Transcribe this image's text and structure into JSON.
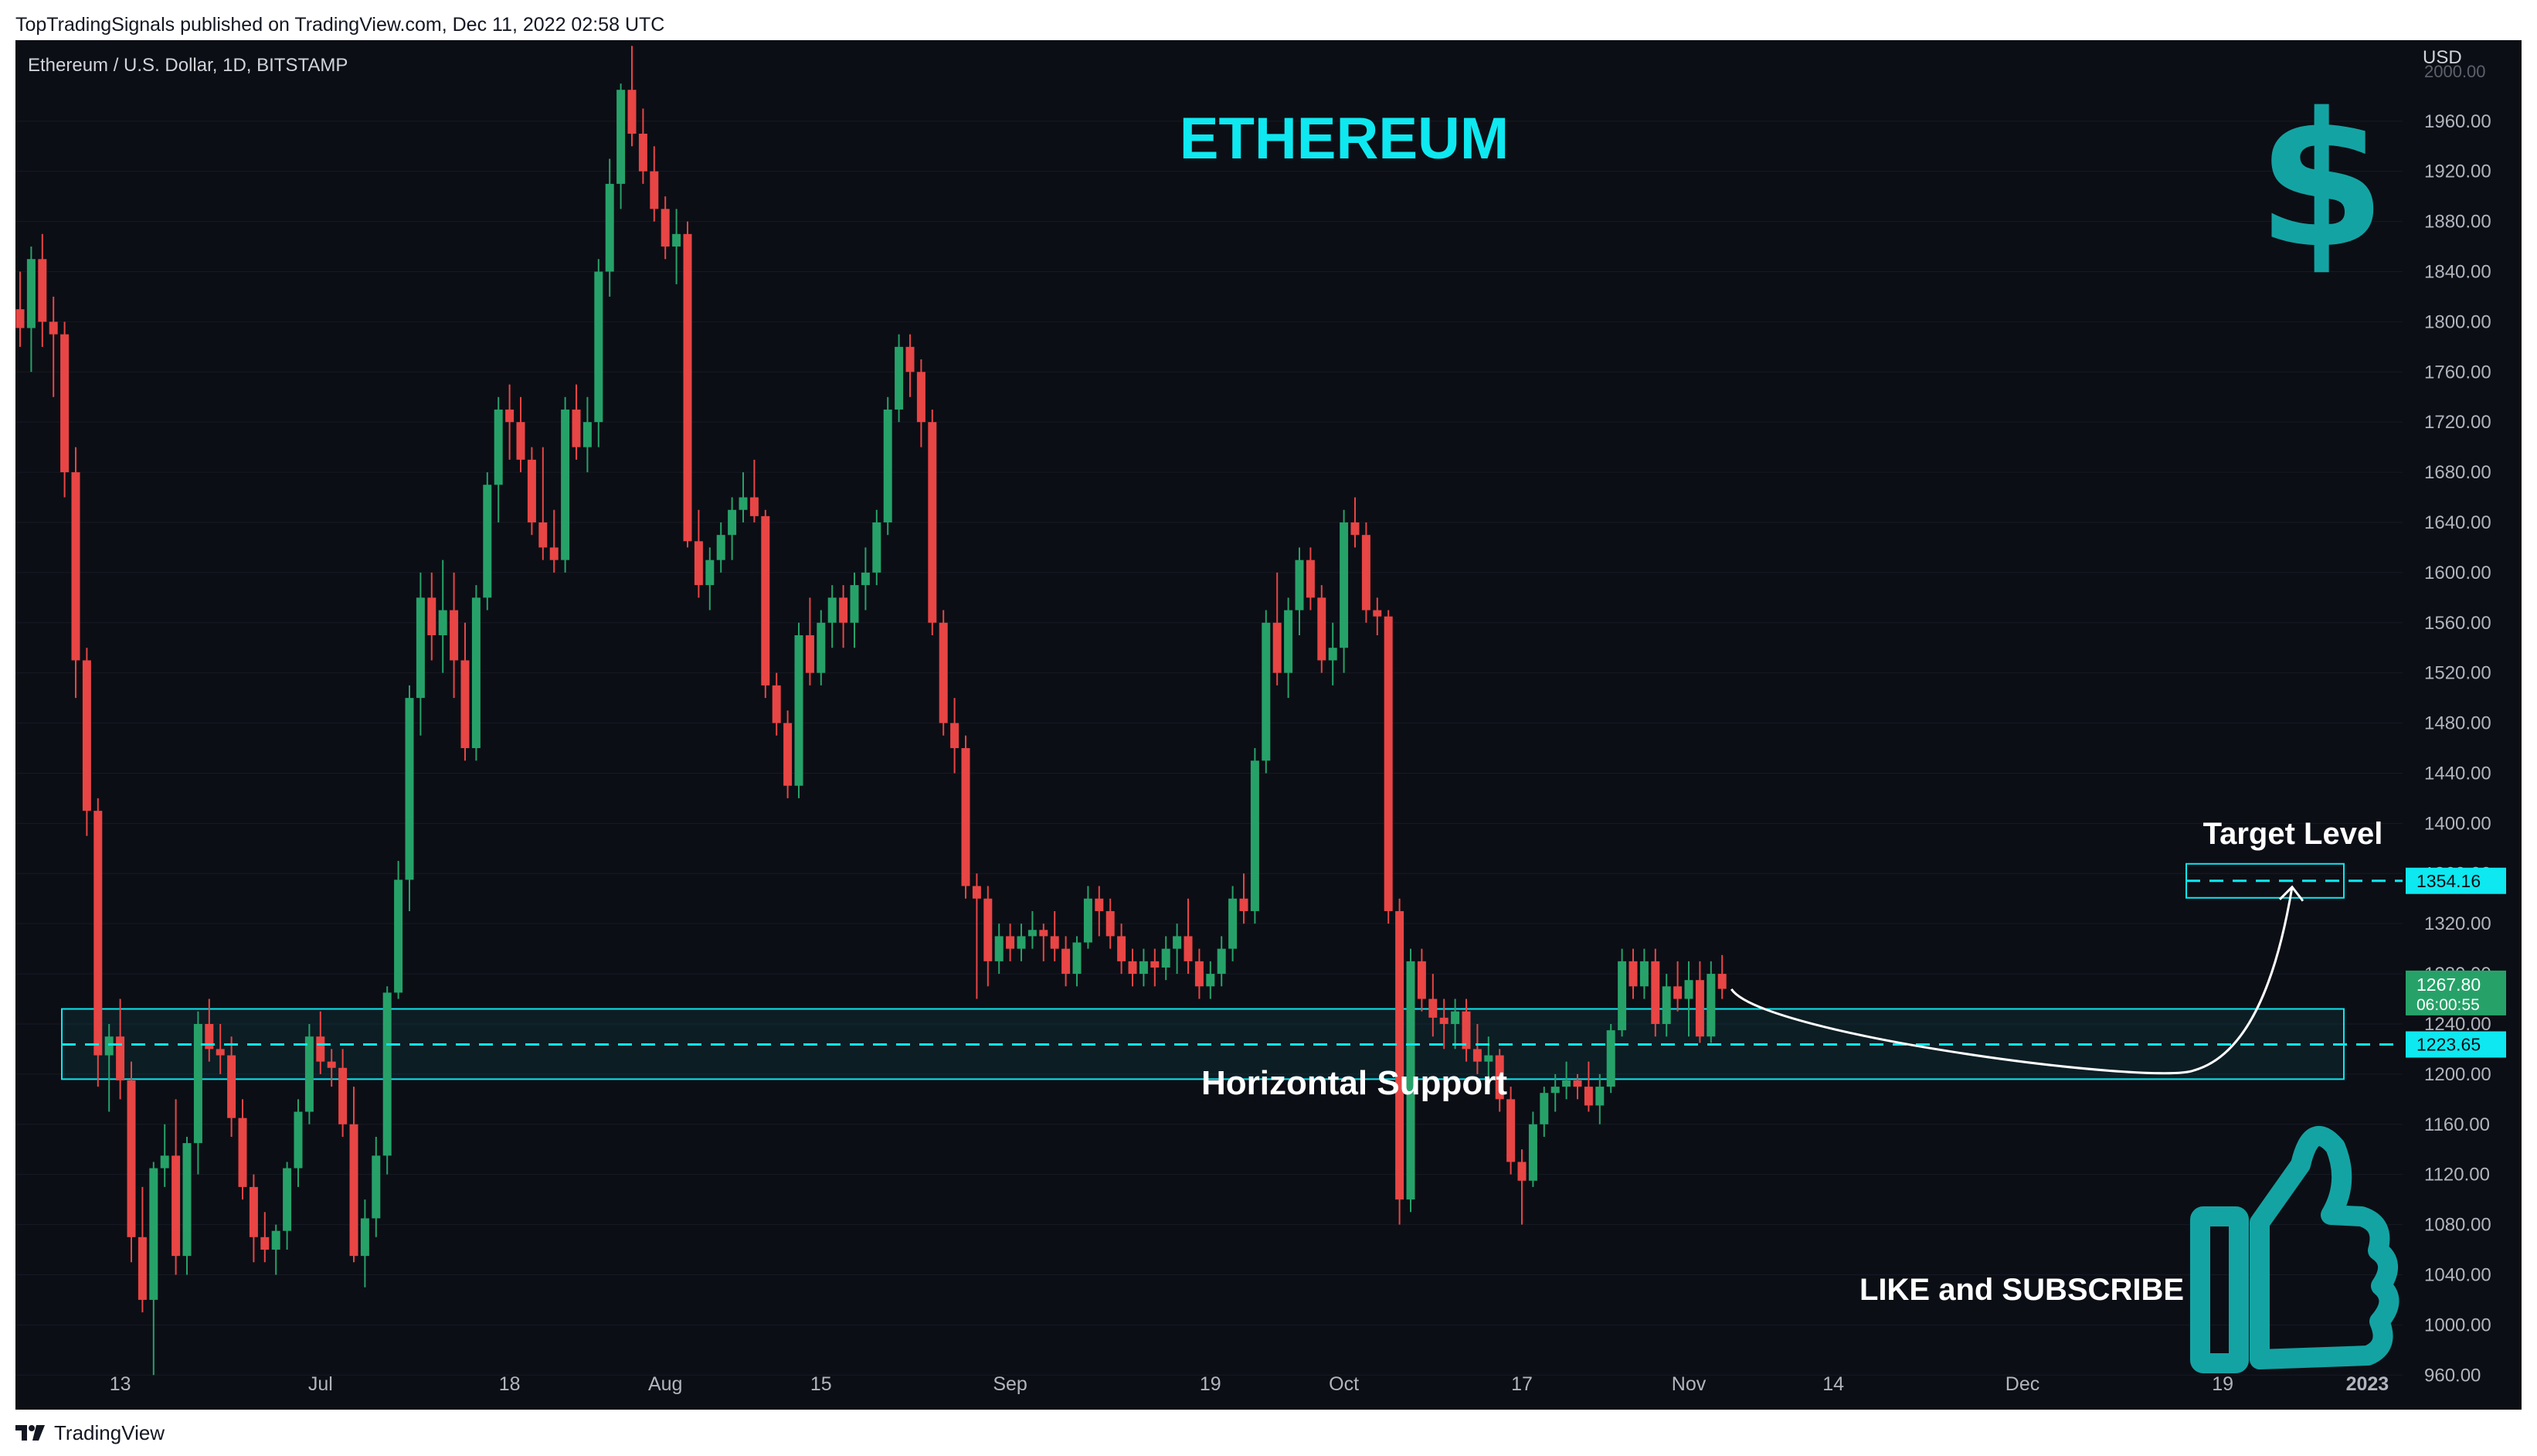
{
  "header": {
    "published_text": "TopTradingSignals published on TradingView.com, Dec 11, 2022 02:58 UTC"
  },
  "footer": {
    "brand": "TradingView"
  },
  "colors": {
    "background": "#0c0e15",
    "up": "#26a269",
    "down": "#e84545",
    "accent": "#0ee8f0",
    "teal_icon": "#14a3a3",
    "white": "#ffffff"
  },
  "chart_data": {
    "type": "candlestick",
    "symbol_line": "Ethereum / U.S. Dollar, 1D, BITSTAMP",
    "title": "ETHEREUM",
    "currency": "USD",
    "ylim": [
      940,
      2020
    ],
    "y_ticks": [
      960,
      1000,
      1040,
      1080,
      1120,
      1160,
      1200,
      1240,
      1280,
      1320,
      1360,
      1400,
      1440,
      1480,
      1520,
      1560,
      1600,
      1640,
      1680,
      1720,
      1760,
      1800,
      1840,
      1880,
      1920,
      1960
    ],
    "y_top_label": "2000.00",
    "x_ticks": [
      {
        "label": "13",
        "index": 9
      },
      {
        "label": "Jul",
        "index": 27
      },
      {
        "label": "18",
        "index": 44
      },
      {
        "label": "Aug",
        "index": 58
      },
      {
        "label": "15",
        "index": 72
      },
      {
        "label": "Sep",
        "index": 89
      },
      {
        "label": "19",
        "index": 107
      },
      {
        "label": "Oct",
        "index": 119
      },
      {
        "label": "17",
        "index": 135
      },
      {
        "label": "Nov",
        "index": 150
      },
      {
        "label": "14",
        "index": 163
      },
      {
        "label": "Dec",
        "index": 180
      },
      {
        "label": "19",
        "index": 198
      },
      {
        "label": "2023",
        "index": 211
      }
    ],
    "candles": [
      [
        1810,
        1840,
        1780,
        1795
      ],
      [
        1795,
        1860,
        1760,
        1850
      ],
      [
        1850,
        1870,
        1780,
        1800
      ],
      [
        1800,
        1820,
        1740,
        1790
      ],
      [
        1790,
        1800,
        1660,
        1680
      ],
      [
        1680,
        1700,
        1500,
        1530
      ],
      [
        1530,
        1540,
        1390,
        1410
      ],
      [
        1410,
        1420,
        1190,
        1215
      ],
      [
        1215,
        1240,
        1170,
        1230
      ],
      [
        1230,
        1260,
        1180,
        1195
      ],
      [
        1195,
        1210,
        1050,
        1070
      ],
      [
        1070,
        1110,
        1010,
        1020
      ],
      [
        1020,
        1130,
        960,
        1125
      ],
      [
        1125,
        1160,
        1110,
        1135
      ],
      [
        1135,
        1180,
        1040,
        1055
      ],
      [
        1055,
        1150,
        1040,
        1145
      ],
      [
        1145,
        1250,
        1120,
        1240
      ],
      [
        1240,
        1260,
        1210,
        1220
      ],
      [
        1220,
        1240,
        1200,
        1215
      ],
      [
        1215,
        1230,
        1150,
        1165
      ],
      [
        1165,
        1180,
        1100,
        1110
      ],
      [
        1110,
        1120,
        1050,
        1070
      ],
      [
        1070,
        1090,
        1050,
        1060
      ],
      [
        1060,
        1080,
        1040,
        1075
      ],
      [
        1075,
        1130,
        1060,
        1125
      ],
      [
        1125,
        1180,
        1110,
        1170
      ],
      [
        1170,
        1240,
        1160,
        1230
      ],
      [
        1230,
        1250,
        1200,
        1210
      ],
      [
        1210,
        1220,
        1190,
        1205
      ],
      [
        1205,
        1220,
        1150,
        1160
      ],
      [
        1160,
        1190,
        1050,
        1055
      ],
      [
        1055,
        1100,
        1030,
        1085
      ],
      [
        1085,
        1150,
        1070,
        1135
      ],
      [
        1135,
        1270,
        1120,
        1265
      ],
      [
        1265,
        1370,
        1260,
        1355
      ],
      [
        1355,
        1510,
        1330,
        1500
      ],
      [
        1500,
        1600,
        1470,
        1580
      ],
      [
        1580,
        1600,
        1530,
        1550
      ],
      [
        1550,
        1610,
        1520,
        1570
      ],
      [
        1570,
        1600,
        1500,
        1530
      ],
      [
        1530,
        1560,
        1450,
        1460
      ],
      [
        1460,
        1590,
        1450,
        1580
      ],
      [
        1580,
        1680,
        1570,
        1670
      ],
      [
        1670,
        1740,
        1640,
        1730
      ],
      [
        1730,
        1750,
        1690,
        1720
      ],
      [
        1720,
        1740,
        1680,
        1690
      ],
      [
        1690,
        1700,
        1630,
        1640
      ],
      [
        1640,
        1700,
        1610,
        1620
      ],
      [
        1620,
        1650,
        1600,
        1610
      ],
      [
        1610,
        1740,
        1600,
        1730
      ],
      [
        1730,
        1750,
        1690,
        1700
      ],
      [
        1700,
        1740,
        1680,
        1720
      ],
      [
        1720,
        1850,
        1700,
        1840
      ],
      [
        1840,
        1930,
        1820,
        1910
      ],
      [
        1910,
        1990,
        1890,
        1985
      ],
      [
        1985,
        2020,
        1940,
        1950
      ],
      [
        1950,
        1970,
        1910,
        1920
      ],
      [
        1920,
        1940,
        1880,
        1890
      ],
      [
        1890,
        1900,
        1850,
        1860
      ],
      [
        1860,
        1890,
        1830,
        1870
      ],
      [
        1870,
        1880,
        1620,
        1625
      ],
      [
        1625,
        1650,
        1580,
        1590
      ],
      [
        1590,
        1620,
        1570,
        1610
      ],
      [
        1610,
        1640,
        1600,
        1630
      ],
      [
        1630,
        1660,
        1610,
        1650
      ],
      [
        1650,
        1680,
        1640,
        1660
      ],
      [
        1660,
        1690,
        1640,
        1645
      ],
      [
        1645,
        1650,
        1500,
        1510
      ],
      [
        1510,
        1520,
        1470,
        1480
      ],
      [
        1480,
        1490,
        1420,
        1430
      ],
      [
        1430,
        1560,
        1420,
        1550
      ],
      [
        1550,
        1580,
        1510,
        1520
      ],
      [
        1520,
        1570,
        1510,
        1560
      ],
      [
        1560,
        1590,
        1540,
        1580
      ],
      [
        1580,
        1590,
        1540,
        1560
      ],
      [
        1560,
        1600,
        1540,
        1590
      ],
      [
        1590,
        1620,
        1570,
        1600
      ],
      [
        1600,
        1650,
        1590,
        1640
      ],
      [
        1640,
        1740,
        1630,
        1730
      ],
      [
        1730,
        1790,
        1720,
        1780
      ],
      [
        1780,
        1790,
        1740,
        1760
      ],
      [
        1760,
        1770,
        1700,
        1720
      ],
      [
        1720,
        1730,
        1550,
        1560
      ],
      [
        1560,
        1570,
        1470,
        1480
      ],
      [
        1480,
        1500,
        1440,
        1460
      ],
      [
        1460,
        1470,
        1340,
        1350
      ],
      [
        1350,
        1360,
        1260,
        1340
      ],
      [
        1340,
        1350,
        1270,
        1290
      ],
      [
        1290,
        1320,
        1280,
        1310
      ],
      [
        1310,
        1320,
        1290,
        1300
      ],
      [
        1300,
        1320,
        1290,
        1310
      ],
      [
        1310,
        1330,
        1300,
        1315
      ],
      [
        1315,
        1320,
        1290,
        1310
      ],
      [
        1310,
        1330,
        1290,
        1300
      ],
      [
        1300,
        1310,
        1270,
        1280
      ],
      [
        1280,
        1310,
        1270,
        1305
      ],
      [
        1305,
        1350,
        1300,
        1340
      ],
      [
        1340,
        1350,
        1310,
        1330
      ],
      [
        1330,
        1340,
        1300,
        1310
      ],
      [
        1310,
        1320,
        1280,
        1290
      ],
      [
        1290,
        1300,
        1270,
        1280
      ],
      [
        1280,
        1300,
        1270,
        1290
      ],
      [
        1290,
        1300,
        1270,
        1285
      ],
      [
        1285,
        1310,
        1275,
        1300
      ],
      [
        1300,
        1320,
        1280,
        1310
      ],
      [
        1310,
        1340,
        1280,
        1290
      ],
      [
        1290,
        1300,
        1260,
        1270
      ],
      [
        1270,
        1290,
        1260,
        1280
      ],
      [
        1280,
        1310,
        1270,
        1300
      ],
      [
        1300,
        1350,
        1290,
        1340
      ],
      [
        1340,
        1360,
        1320,
        1330
      ],
      [
        1330,
        1460,
        1320,
        1450
      ],
      [
        1450,
        1570,
        1440,
        1560
      ],
      [
        1560,
        1600,
        1510,
        1520
      ],
      [
        1520,
        1580,
        1500,
        1570
      ],
      [
        1570,
        1620,
        1550,
        1610
      ],
      [
        1610,
        1620,
        1570,
        1580
      ],
      [
        1580,
        1590,
        1520,
        1530
      ],
      [
        1530,
        1560,
        1510,
        1540
      ],
      [
        1540,
        1650,
        1520,
        1640
      ],
      [
        1640,
        1660,
        1620,
        1630
      ],
      [
        1630,
        1640,
        1560,
        1570
      ],
      [
        1570,
        1580,
        1550,
        1565
      ],
      [
        1565,
        1570,
        1320,
        1330
      ],
      [
        1330,
        1340,
        1080,
        1100
      ],
      [
        1100,
        1300,
        1090,
        1290
      ],
      [
        1290,
        1300,
        1250,
        1260
      ],
      [
        1260,
        1280,
        1230,
        1245
      ],
      [
        1245,
        1260,
        1220,
        1240
      ],
      [
        1240,
        1260,
        1220,
        1250
      ],
      [
        1250,
        1260,
        1210,
        1220
      ],
      [
        1220,
        1240,
        1200,
        1210
      ],
      [
        1210,
        1230,
        1190,
        1215
      ],
      [
        1215,
        1220,
        1170,
        1180
      ],
      [
        1180,
        1190,
        1120,
        1130
      ],
      [
        1130,
        1140,
        1080,
        1115
      ],
      [
        1115,
        1170,
        1110,
        1160
      ],
      [
        1160,
        1190,
        1150,
        1185
      ],
      [
        1185,
        1200,
        1170,
        1190
      ],
      [
        1190,
        1210,
        1180,
        1195
      ],
      [
        1195,
        1200,
        1180,
        1190
      ],
      [
        1190,
        1210,
        1170,
        1175
      ],
      [
        1175,
        1200,
        1160,
        1190
      ],
      [
        1190,
        1240,
        1185,
        1235
      ],
      [
        1235,
        1300,
        1230,
        1290
      ],
      [
        1290,
        1300,
        1260,
        1270
      ],
      [
        1270,
        1300,
        1260,
        1290
      ],
      [
        1290,
        1300,
        1230,
        1240
      ],
      [
        1240,
        1280,
        1230,
        1270
      ],
      [
        1270,
        1290,
        1250,
        1260
      ],
      [
        1260,
        1290,
        1230,
        1275
      ],
      [
        1275,
        1290,
        1225,
        1230
      ],
      [
        1230,
        1290,
        1225,
        1280
      ],
      [
        1280,
        1295,
        1260,
        1268
      ]
    ],
    "annotations": {
      "target_level": {
        "label": "Target Level",
        "value": 1354.16,
        "value_label": "1354.16"
      },
      "horizontal_support": {
        "label": "Horizontal Support",
        "value": 1223.65,
        "value_label": "1223.65",
        "zone": [
          1196,
          1252
        ]
      },
      "last_price": {
        "value": 1267.8,
        "value_label": "1267.80",
        "countdown": "06:00:55"
      },
      "cta": "LIKE and SUBSCRIBE"
    }
  }
}
